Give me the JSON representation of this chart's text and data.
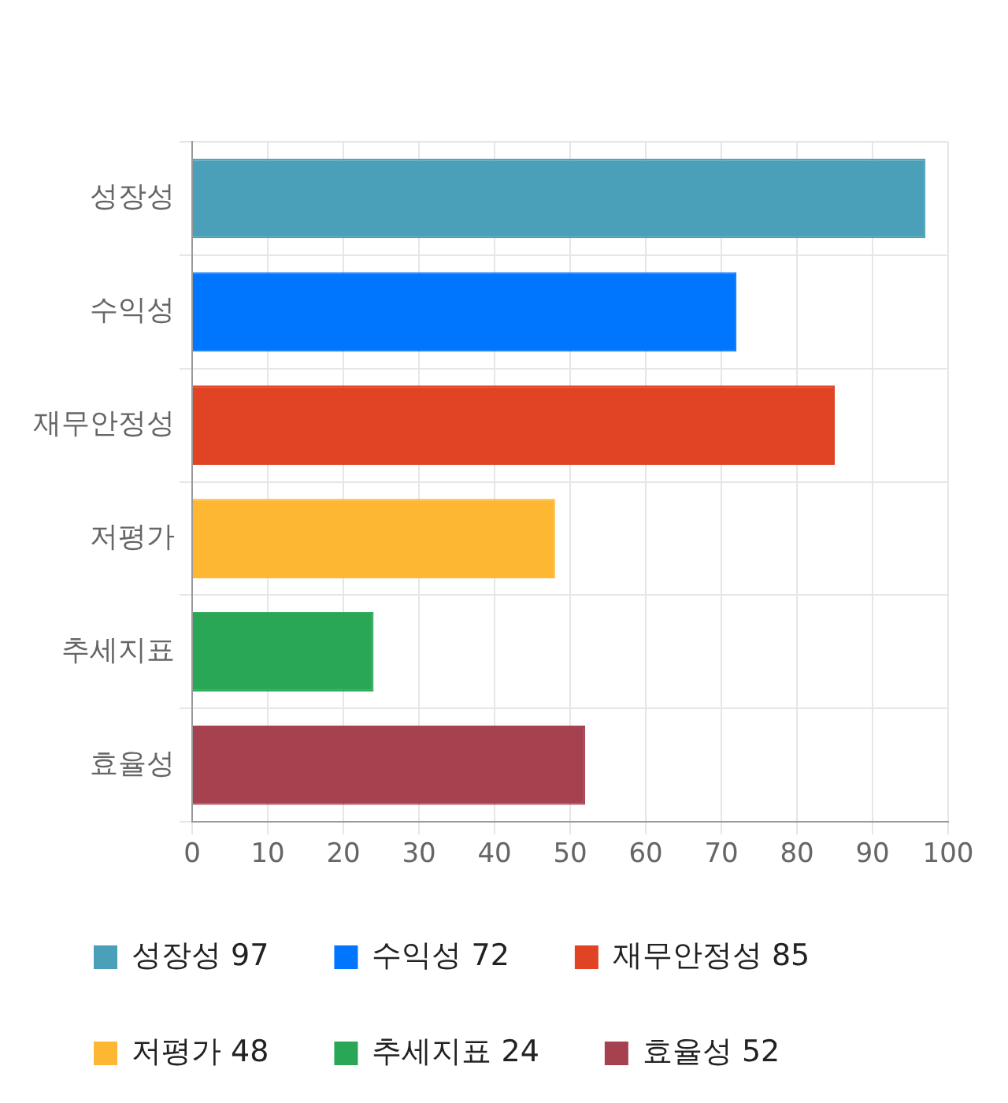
{
  "chart_data": {
    "type": "bar",
    "orientation": "horizontal",
    "stacked": true,
    "categories": [
      "성장성",
      "수익성",
      "재무안정성",
      "저평가",
      "추세지표",
      "효율성"
    ],
    "series": [
      {
        "name": "성장성 97",
        "color": "#4aa0b9",
        "values": [
          97,
          null,
          null,
          null,
          null,
          null
        ]
      },
      {
        "name": "수익성 72",
        "color": "#0076ff",
        "values": [
          null,
          72,
          null,
          null,
          null,
          null
        ]
      },
      {
        "name": "재무안정성 85",
        "color": "#e04424",
        "values": [
          null,
          null,
          85,
          null,
          null,
          null
        ]
      },
      {
        "name": "저평가 48",
        "color": "#fdb732",
        "values": [
          null,
          null,
          null,
          48,
          null,
          null
        ]
      },
      {
        "name": "추세지표 24",
        "color": "#29a756",
        "values": [
          null,
          null,
          null,
          null,
          24,
          null
        ]
      },
      {
        "name": "효율성 52",
        "color": "#a6414f",
        "values": [
          null,
          null,
          null,
          null,
          null,
          52
        ]
      }
    ],
    "xlim": [
      0,
      100
    ],
    "xticks": [
      0,
      10,
      20,
      30,
      40,
      50,
      60,
      70,
      80,
      90,
      100
    ],
    "grid": true,
    "legend": "bottom"
  }
}
